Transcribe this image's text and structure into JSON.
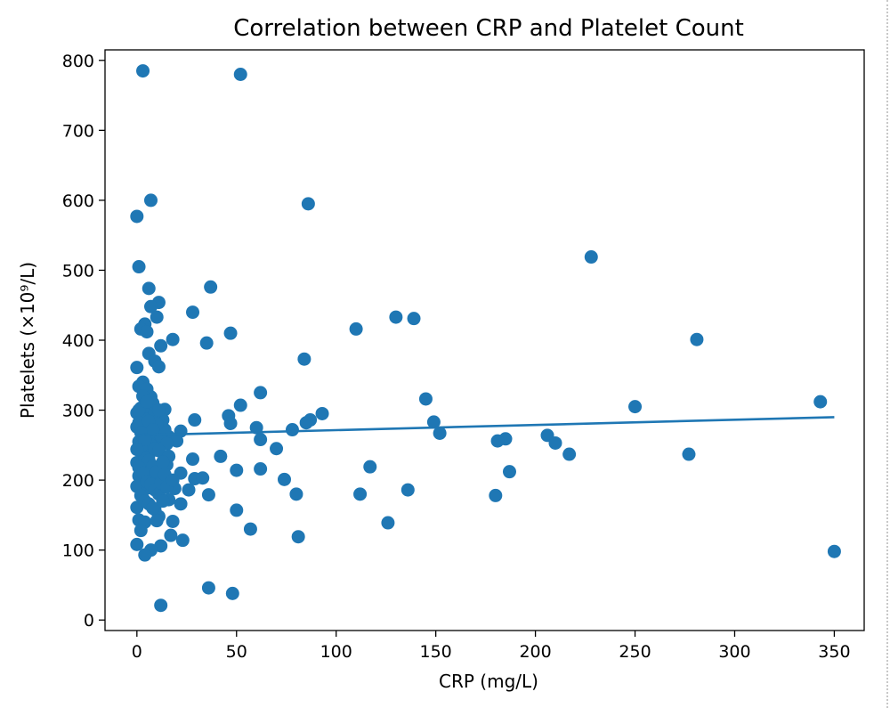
{
  "chart_data": {
    "type": "scatter",
    "title": "Correlation between CRP and Platelet Count",
    "xlabel": "CRP (mg/L)",
    "ylabel": "Platelets (×10⁹/L)",
    "xlim": [
      -16,
      365
    ],
    "ylim": [
      -15,
      815
    ],
    "xticks": [
      0,
      50,
      100,
      150,
      200,
      250,
      300,
      350
    ],
    "yticks": [
      0,
      100,
      200,
      300,
      400,
      500,
      600,
      700,
      800
    ],
    "point_color": "#1f77b4",
    "trend_line": {
      "x": [
        0,
        350
      ],
      "y": [
        264,
        290
      ]
    },
    "points": [
      [
        3,
        785
      ],
      [
        52,
        780
      ],
      [
        7,
        600
      ],
      [
        86,
        595
      ],
      [
        0,
        577
      ],
      [
        1,
        505
      ],
      [
        228,
        519
      ],
      [
        6,
        474
      ],
      [
        37,
        476
      ],
      [
        11,
        454
      ],
      [
        7,
        448
      ],
      [
        28,
        440
      ],
      [
        4,
        423
      ],
      [
        10,
        433
      ],
      [
        130,
        433
      ],
      [
        139,
        431
      ],
      [
        2,
        416
      ],
      [
        110,
        416
      ],
      [
        5,
        412
      ],
      [
        47,
        410
      ],
      [
        18,
        401
      ],
      [
        35,
        396
      ],
      [
        12,
        392
      ],
      [
        281,
        401
      ],
      [
        6,
        381
      ],
      [
        84,
        373
      ],
      [
        9,
        370
      ],
      [
        11,
        362
      ],
      [
        0,
        361
      ],
      [
        3,
        340
      ],
      [
        1,
        334
      ],
      [
        62,
        325
      ],
      [
        5,
        330
      ],
      [
        7,
        319
      ],
      [
        145,
        316
      ],
      [
        343,
        312
      ],
      [
        2,
        303
      ],
      [
        14,
        301
      ],
      [
        52,
        307
      ],
      [
        250,
        305
      ],
      [
        0,
        296
      ],
      [
        4,
        290
      ],
      [
        46,
        292
      ],
      [
        29,
        286
      ],
      [
        93,
        295
      ],
      [
        87,
        286
      ],
      [
        85,
        282
      ],
      [
        8,
        288
      ],
      [
        60,
        275
      ],
      [
        149,
        283
      ],
      [
        0,
        276
      ],
      [
        3,
        272
      ],
      [
        78,
        272
      ],
      [
        22,
        270
      ],
      [
        47,
        281
      ],
      [
        16,
        262
      ],
      [
        62,
        258
      ],
      [
        152,
        267
      ],
      [
        1,
        255
      ],
      [
        185,
        259
      ],
      [
        181,
        256
      ],
      [
        206,
        264
      ],
      [
        10,
        255
      ],
      [
        20,
        256
      ],
      [
        210,
        253
      ],
      [
        70,
        245
      ],
      [
        2,
        240
      ],
      [
        6,
        236
      ],
      [
        42,
        234
      ],
      [
        217,
        237
      ],
      [
        277,
        237
      ],
      [
        28,
        230
      ],
      [
        0,
        225
      ],
      [
        15,
        222
      ],
      [
        5,
        216
      ],
      [
        117,
        219
      ],
      [
        50,
        214
      ],
      [
        62,
        216
      ],
      [
        187,
        212
      ],
      [
        22,
        210
      ],
      [
        1,
        206
      ],
      [
        8,
        202
      ],
      [
        29,
        202
      ],
      [
        33,
        203
      ],
      [
        74,
        201
      ],
      [
        13,
        200
      ],
      [
        0,
        191
      ],
      [
        6,
        189
      ],
      [
        19,
        188
      ],
      [
        26,
        186
      ],
      [
        136,
        186
      ],
      [
        36,
        179
      ],
      [
        80,
        180
      ],
      [
        112,
        180
      ],
      [
        180,
        178
      ],
      [
        3,
        174
      ],
      [
        16,
        172
      ],
      [
        22,
        166
      ],
      [
        0,
        161
      ],
      [
        9,
        158
      ],
      [
        50,
        157
      ],
      [
        11,
        148
      ],
      [
        1,
        143
      ],
      [
        4,
        140
      ],
      [
        18,
        141
      ],
      [
        126,
        139
      ],
      [
        2,
        128
      ],
      [
        57,
        130
      ],
      [
        17,
        121
      ],
      [
        81,
        119
      ],
      [
        23,
        114
      ],
      [
        0,
        108
      ],
      [
        12,
        106
      ],
      [
        7,
        100
      ],
      [
        4,
        93
      ],
      [
        350,
        98
      ],
      [
        36,
        46
      ],
      [
        48,
        38
      ],
      [
        12,
        21
      ],
      [
        2,
        292
      ],
      [
        4,
        298
      ],
      [
        6,
        305
      ],
      [
        8,
        310
      ],
      [
        1,
        300
      ],
      [
        3,
        262
      ],
      [
        5,
        266
      ],
      [
        7,
        250
      ],
      [
        9,
        245
      ],
      [
        2,
        248
      ],
      [
        4,
        232
      ],
      [
        6,
        228
      ],
      [
        8,
        220
      ],
      [
        10,
        212
      ],
      [
        1,
        218
      ],
      [
        3,
        210
      ],
      [
        5,
        198
      ],
      [
        7,
        194
      ],
      [
        9,
        186
      ],
      [
        11,
        180
      ],
      [
        2,
        178
      ],
      [
        4,
        170
      ],
      [
        6,
        166
      ],
      [
        8,
        160
      ],
      [
        12,
        264
      ],
      [
        14,
        272
      ],
      [
        13,
        286
      ],
      [
        15,
        252
      ],
      [
        11,
        242
      ],
      [
        16,
        234
      ],
      [
        13,
        226
      ],
      [
        12,
        196
      ],
      [
        14,
        208
      ],
      [
        15,
        190
      ],
      [
        18,
        200
      ],
      [
        3,
        320
      ],
      [
        5,
        312
      ],
      [
        9,
        296
      ],
      [
        10,
        280
      ],
      [
        1,
        282
      ],
      [
        6,
        284
      ],
      [
        8,
        272
      ],
      [
        2,
        268
      ],
      [
        4,
        258
      ],
      [
        0,
        244
      ],
      [
        11,
        300
      ],
      [
        13,
        170
      ],
      [
        10,
        142
      ]
    ]
  }
}
